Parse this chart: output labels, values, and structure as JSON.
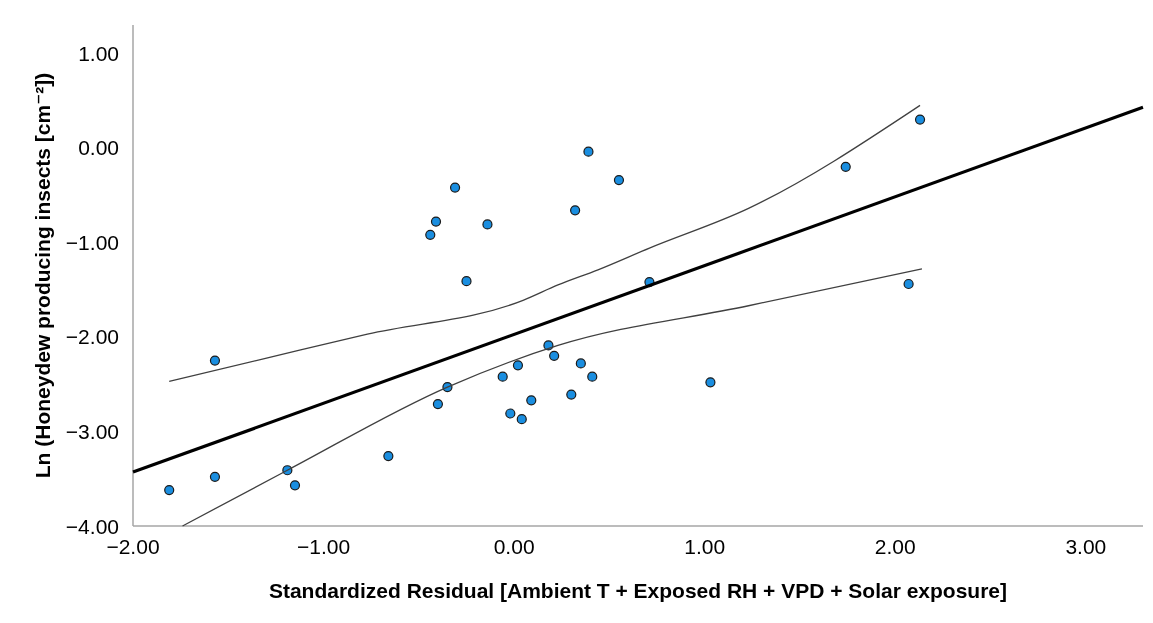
{
  "chart_data": {
    "type": "scatter",
    "xlabel": "Standardized Residual [Ambient T + Exposed RH + VPD + Solar exposure]",
    "ylabel": "Ln (Honeydew producing insects [cm⁻²])",
    "xlim": [
      -2,
      3.3
    ],
    "xticks": [
      {
        "value": -2,
        "label": "−2.00"
      },
      {
        "value": -1,
        "label": "−1.00"
      },
      {
        "value": 0,
        "label": "0.00"
      },
      {
        "value": 1,
        "label": "1.00"
      },
      {
        "value": 2,
        "label": "2.00"
      },
      {
        "value": 3,
        "label": "3.00"
      }
    ],
    "ylim": [
      -4,
      1.3
    ],
    "yticks": [
      {
        "value": -4,
        "label": "−4.00"
      },
      {
        "value": -3,
        "label": "−3.00"
      },
      {
        "value": -2,
        "label": "−2.00"
      },
      {
        "value": -1,
        "label": "−1.00"
      },
      {
        "value": 0,
        "label": "0.00"
      },
      {
        "value": 1,
        "label": "1.00"
      }
    ],
    "grid": false,
    "series": [
      {
        "color": "#1a8ee0",
        "marker": "circle",
        "x": [
          0.39,
          -0.31,
          -0.41,
          -0.44,
          -0.14,
          0.32,
          -0.25,
          -1.57,
          -1.81,
          -1.57,
          -1.19,
          -1.15,
          -0.66,
          -0.4,
          -0.35,
          -0.06,
          0.02,
          -0.02,
          0.04,
          0.09,
          0.18,
          0.21,
          0.35,
          0.41,
          0.3,
          0.55,
          0.71,
          1.74,
          2.13,
          2.07,
          1.03
        ],
        "values": [
          -0.04,
          -0.42,
          -0.78,
          -0.92,
          -0.81,
          -0.66,
          -1.41,
          -2.25,
          -3.62,
          -3.48,
          -3.41,
          -3.57,
          -3.26,
          -2.71,
          -2.53,
          -2.42,
          -2.3,
          -2.81,
          -2.87,
          -2.67,
          -2.09,
          -2.2,
          -2.28,
          -2.42,
          -2.61,
          -0.34,
          -1.42,
          -0.2,
          0.3,
          -1.44,
          -2.48
        ]
      },
      {
        "type": "line",
        "color": "#000000",
        "marker": "none",
        "x": [
          -2,
          3.3
        ],
        "values": [
          -3.43,
          0.43
        ]
      },
      {
        "type": "line",
        "color": "#404040",
        "marker": "none",
        "x": [
          -1.81,
          -1.31,
          -0.77,
          0.05,
          0.23,
          0.44,
          0.71,
          1.23,
          2.13
        ],
        "values": [
          -2.47,
          -2.23,
          -1.97,
          -1.61,
          -1.45,
          -1.29,
          -1.06,
          -0.64,
          0.45
        ]
      },
      {
        "type": "line",
        "color": "#404040",
        "marker": "none",
        "x": [
          -1.74,
          -1.19,
          -0.35,
          0.23,
          1.23,
          2.14
        ],
        "values": [
          -4.0,
          -3.41,
          -2.53,
          -2.09,
          -1.67,
          -1.28
        ]
      }
    ]
  }
}
